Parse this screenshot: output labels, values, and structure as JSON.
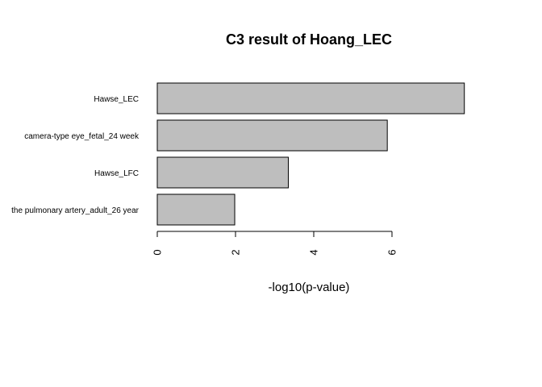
{
  "chart_data": {
    "type": "bar",
    "orientation": "horizontal",
    "title": "C3 result of Hoang_LEC",
    "xlabel": "-log10(p-value)",
    "ylabel": "",
    "categories": [
      "Hawse_LEC",
      "camera-type eye_fetal_24 week",
      "Hawse_LFC",
      "the pulmonary artery_adult_26 year"
    ],
    "values": [
      7.85,
      5.88,
      3.35,
      1.98
    ],
    "xticks": [
      0,
      2,
      4,
      6
    ],
    "tick_labels": [
      "0",
      "2",
      "4",
      "6"
    ],
    "bar_color": "#bebebe",
    "grid": false,
    "legend": "none"
  }
}
